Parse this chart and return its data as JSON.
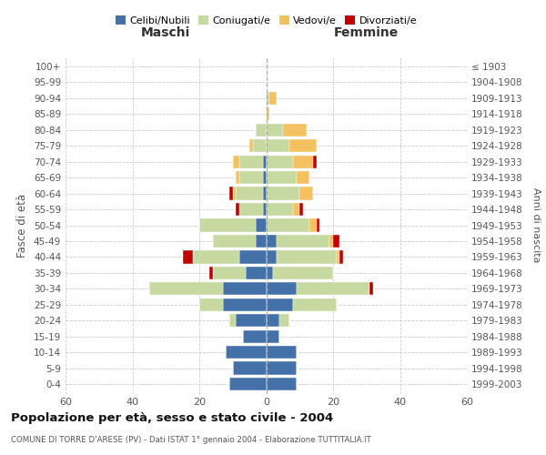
{
  "age_groups": [
    "0-4",
    "5-9",
    "10-14",
    "15-19",
    "20-24",
    "25-29",
    "30-34",
    "35-39",
    "40-44",
    "45-49",
    "50-54",
    "55-59",
    "60-64",
    "65-69",
    "70-74",
    "75-79",
    "80-84",
    "85-89",
    "90-94",
    "95-99",
    "100+"
  ],
  "birth_years": [
    "1999-2003",
    "1994-1998",
    "1989-1993",
    "1984-1988",
    "1979-1983",
    "1974-1978",
    "1969-1973",
    "1964-1968",
    "1959-1963",
    "1954-1958",
    "1949-1953",
    "1944-1948",
    "1939-1943",
    "1934-1938",
    "1929-1933",
    "1924-1928",
    "1919-1923",
    "1914-1918",
    "1909-1913",
    "1904-1908",
    "≤ 1903"
  ],
  "males": {
    "celibi": [
      11,
      10,
      12,
      7,
      9,
      13,
      13,
      6,
      8,
      3,
      3,
      1,
      1,
      1,
      1,
      0,
      0,
      0,
      0,
      0,
      0
    ],
    "coniugati": [
      0,
      0,
      0,
      0,
      2,
      7,
      22,
      10,
      14,
      13,
      17,
      7,
      8,
      7,
      7,
      4,
      3,
      0,
      0,
      0,
      0
    ],
    "vedovi": [
      0,
      0,
      0,
      0,
      0,
      0,
      0,
      0,
      0,
      0,
      0,
      0,
      1,
      1,
      2,
      1,
      0,
      0,
      0,
      0,
      0
    ],
    "divorziati": [
      0,
      0,
      0,
      0,
      0,
      0,
      0,
      1,
      3,
      0,
      0,
      1,
      1,
      0,
      0,
      0,
      0,
      0,
      0,
      0,
      0
    ]
  },
  "females": {
    "nubili": [
      9,
      9,
      9,
      4,
      4,
      8,
      9,
      2,
      3,
      3,
      0,
      0,
      0,
      0,
      0,
      0,
      0,
      0,
      0,
      0,
      0
    ],
    "coniugate": [
      0,
      0,
      0,
      0,
      3,
      13,
      22,
      18,
      18,
      16,
      13,
      8,
      10,
      9,
      8,
      7,
      5,
      0,
      1,
      0,
      0
    ],
    "vedove": [
      0,
      0,
      0,
      0,
      0,
      0,
      0,
      0,
      1,
      1,
      2,
      2,
      4,
      4,
      6,
      8,
      7,
      1,
      2,
      0,
      0
    ],
    "divorziate": [
      0,
      0,
      0,
      0,
      0,
      0,
      1,
      0,
      1,
      2,
      1,
      1,
      0,
      0,
      1,
      0,
      0,
      0,
      0,
      0,
      0
    ]
  },
  "colors": {
    "celibi_nubili": "#4472a8",
    "coniugati": "#c5d9a0",
    "vedovi": "#f5c060",
    "divorziati": "#c00000"
  },
  "title": "Popolazione per età, sesso e stato civile - 2004",
  "subtitle": "COMUNE DI TORRE D'ARESE (PV) - Dati ISTAT 1° gennaio 2004 - Elaborazione TUTTITALIA.IT",
  "xlabel_left": "Maschi",
  "xlabel_right": "Femmine",
  "ylabel_left": "Fasce di età",
  "ylabel_right": "Anni di nascita",
  "xlim": 60,
  "bg_color": "#ffffff",
  "grid_color": "#cccccc",
  "legend_labels": [
    "Celibi/Nubili",
    "Coniugati/e",
    "Vedovi/e",
    "Divorziati/e"
  ]
}
